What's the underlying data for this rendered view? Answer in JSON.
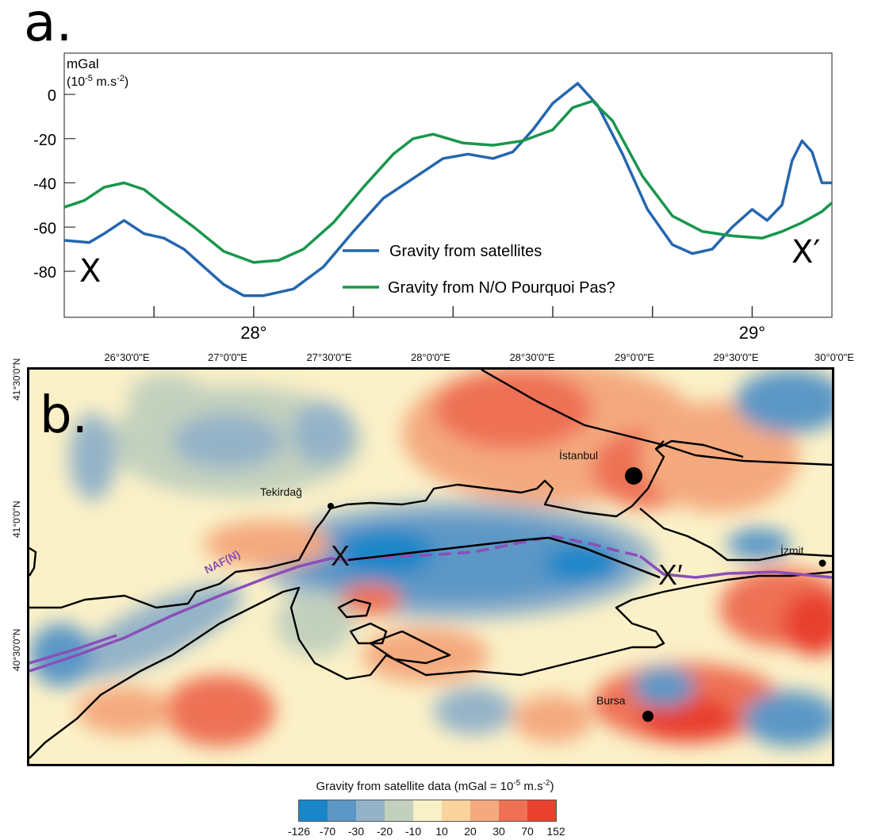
{
  "panel_a": {
    "letter": "a.",
    "ylabel_line1": "mGal",
    "ylabel_line2_prefix": "(10",
    "ylabel_line2_sup1": "-5",
    "ylabel_line2_mid": " m.s",
    "ylabel_line2_sup2": "-2",
    "ylabel_line2_suffix": ")",
    "start_label": "X",
    "end_label": "X′",
    "chart_data": {
      "type": "line",
      "xlabel": "",
      "ylabel": "mGal (10-5 m.s-2)",
      "xlim": [
        27.62,
        29.16
      ],
      "ylim": [
        -92,
        8
      ],
      "x_ticks": [
        28,
        29
      ],
      "x_tick_labels": [
        "28°",
        "29°"
      ],
      "x_minor_ticks": [
        27.8,
        28.2,
        28.4,
        28.6,
        28.8
      ],
      "y_ticks": [
        0,
        -20,
        -40,
        -60,
        -80
      ],
      "y_tick_labels": [
        "0",
        "-20",
        "-40",
        "-60",
        "-80"
      ],
      "legend_position": "bottom-center",
      "series": [
        {
          "name": "Gravity from satellites",
          "color": "#2566ae",
          "points": [
            [
              27.62,
              -66
            ],
            [
              27.67,
              -67
            ],
            [
              27.7,
              -63
            ],
            [
              27.74,
              -57
            ],
            [
              27.78,
              -63
            ],
            [
              27.82,
              -65
            ],
            [
              27.86,
              -70
            ],
            [
              27.9,
              -78
            ],
            [
              27.94,
              -86
            ],
            [
              27.98,
              -91
            ],
            [
              28.02,
              -91
            ],
            [
              28.08,
              -88
            ],
            [
              28.14,
              -78
            ],
            [
              28.2,
              -62
            ],
            [
              28.26,
              -47
            ],
            [
              28.32,
              -38
            ],
            [
              28.38,
              -29
            ],
            [
              28.43,
              -27
            ],
            [
              28.48,
              -29
            ],
            [
              28.52,
              -26
            ],
            [
              28.56,
              -16
            ],
            [
              28.6,
              -4
            ],
            [
              28.65,
              5
            ],
            [
              28.69,
              -5
            ],
            [
              28.74,
              -27
            ],
            [
              28.79,
              -52
            ],
            [
              28.84,
              -68
            ],
            [
              28.88,
              -72
            ],
            [
              28.92,
              -70
            ],
            [
              28.96,
              -60
            ],
            [
              29.0,
              -52
            ],
            [
              29.03,
              -57
            ],
            [
              29.06,
              -50
            ],
            [
              29.08,
              -30
            ],
            [
              29.1,
              -21
            ],
            [
              29.12,
              -26
            ],
            [
              29.14,
              -40
            ],
            [
              29.16,
              -40
            ]
          ]
        },
        {
          "name": "Gravity from N/O Pourquoi Pas?",
          "color": "#18964c",
          "points": [
            [
              27.62,
              -51
            ],
            [
              27.66,
              -48
            ],
            [
              27.7,
              -42
            ],
            [
              27.74,
              -40
            ],
            [
              27.78,
              -43
            ],
            [
              27.82,
              -50
            ],
            [
              27.88,
              -60
            ],
            [
              27.94,
              -71
            ],
            [
              28.0,
              -76
            ],
            [
              28.05,
              -75
            ],
            [
              28.1,
              -70
            ],
            [
              28.16,
              -58
            ],
            [
              28.22,
              -42
            ],
            [
              28.28,
              -27
            ],
            [
              28.32,
              -20
            ],
            [
              28.36,
              -18
            ],
            [
              28.42,
              -22
            ],
            [
              28.48,
              -23
            ],
            [
              28.54,
              -21
            ],
            [
              28.6,
              -16
            ],
            [
              28.64,
              -6
            ],
            [
              28.68,
              -3
            ],
            [
              28.72,
              -12
            ],
            [
              28.78,
              -37
            ],
            [
              28.84,
              -55
            ],
            [
              28.9,
              -62
            ],
            [
              28.96,
              -64
            ],
            [
              29.02,
              -65
            ],
            [
              29.06,
              -62
            ],
            [
              29.1,
              -58
            ],
            [
              29.14,
              -53
            ],
            [
              29.16,
              -49
            ]
          ]
        }
      ]
    }
  },
  "panel_b": {
    "letter": "b.",
    "lon_labels": [
      "26°30'0\"E",
      "27°0'0\"E",
      "27°30'0\"E",
      "28°0'0\"E",
      "28°30'0\"E",
      "29°0'0\"E",
      "29°30'0\"E",
      "30°0'0\"E"
    ],
    "lat_labels": [
      "41°30'0\"N",
      "41°0'0\"N",
      "40°30'0\"N"
    ],
    "cities": {
      "istanbul": "İstanbul",
      "tekirdag": "Tekirdağ",
      "izmit": "İzmit",
      "bursa": "Bursa"
    },
    "profile_start": "X",
    "profile_end": "X′",
    "fault_label": "NAF(N)",
    "fault_color": "#8a4fb8",
    "colorbar": {
      "title_prefix": "Gravity from satellite data (mGal = 10",
      "title_sup": "-5",
      "title_suffix": " m.s",
      "title_sup2": "-2",
      "title_end": ")",
      "colors": [
        "#1a86c8",
        "#5c97c6",
        "#94b3c8",
        "#c2d0bd",
        "#f8f0c6",
        "#fbd39e",
        "#f4a97e",
        "#ee7155",
        "#e8412e"
      ],
      "tick_labels": [
        "-126",
        "-70",
        "-30",
        "-20",
        "-10",
        "10",
        "20",
        "30",
        "70",
        "152"
      ]
    }
  }
}
